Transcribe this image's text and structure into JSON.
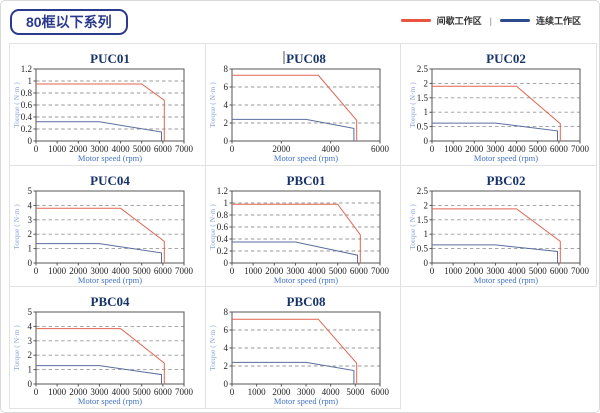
{
  "header": {
    "title": "80框以下系列"
  },
  "legend": {
    "separator": "|",
    "items": [
      {
        "label": "间歇工作区",
        "color": "#e8543d"
      },
      {
        "label": "连续工作区",
        "color": "#2e4a8f"
      }
    ]
  },
  "axis": {
    "xlabel": "Motor speed (rpm)",
    "ylabel": "Torque ( N·m )"
  },
  "colors": {
    "curve_red": "#e06552",
    "curve_blue": "#5a6d9e",
    "grid": "#999999",
    "frame": "#555555",
    "title": "#17336b",
    "tick": "#222222",
    "xlabel_text": "#4472c4",
    "ylabel_text": "#8ca6d9"
  },
  "chart_data": [
    {
      "type": "line",
      "title": "PUC01",
      "caret": false,
      "x": {
        "max": 7000,
        "step": 1000
      },
      "y": {
        "max": 1.2,
        "labels": [
          "0",
          "0.2",
          "0.4",
          "0.6",
          "0.8",
          "1",
          "1.2"
        ]
      },
      "series": [
        {
          "name": "间歇工作区",
          "color": "red",
          "points": [
            [
              0,
              0.95
            ],
            [
              5000,
              0.95
            ],
            [
              6000,
              0.68
            ],
            [
              6000,
              0
            ]
          ]
        },
        {
          "name": "连续工作区",
          "color": "blue",
          "points": [
            [
              0,
              0.32
            ],
            [
              3000,
              0.32
            ],
            [
              6000,
              0.15
            ],
            [
              6000,
              0
            ]
          ]
        }
      ]
    },
    {
      "type": "line",
      "title": "PUC08",
      "caret": true,
      "x": {
        "max": 6000,
        "step": 2000
      },
      "y": {
        "max": 8,
        "labels": [
          "0",
          "2",
          "4",
          "6",
          "8"
        ]
      },
      "series": [
        {
          "name": "间歇工作区",
          "color": "red",
          "points": [
            [
              0,
              7.3
            ],
            [
              3500,
              7.3
            ],
            [
              5000,
              2.3
            ],
            [
              5000,
              0
            ]
          ]
        },
        {
          "name": "连续工作区",
          "color": "blue",
          "points": [
            [
              0,
              2.4
            ],
            [
              3000,
              2.4
            ],
            [
              5000,
              1.4
            ],
            [
              5000,
              0
            ]
          ]
        }
      ]
    },
    {
      "type": "line",
      "title": "PUC02",
      "caret": false,
      "x": {
        "max": 7000,
        "step": 1000
      },
      "y": {
        "max": 2.5,
        "labels": [
          "0",
          "0.5",
          "1",
          "1.5",
          "2",
          "2.5"
        ]
      },
      "series": [
        {
          "name": "间歇工作区",
          "color": "red",
          "points": [
            [
              0,
              1.9
            ],
            [
              4000,
              1.9
            ],
            [
              6000,
              0.6
            ],
            [
              6000,
              0
            ]
          ]
        },
        {
          "name": "连续工作区",
          "color": "blue",
          "points": [
            [
              0,
              0.62
            ],
            [
              3000,
              0.62
            ],
            [
              6000,
              0.35
            ],
            [
              6000,
              0
            ]
          ]
        }
      ]
    },
    {
      "type": "line",
      "title": "PUC04",
      "caret": false,
      "x": {
        "max": 7000,
        "step": 1000
      },
      "y": {
        "max": 5,
        "labels": [
          "0",
          "1",
          "2",
          "3",
          "4",
          "5"
        ]
      },
      "series": [
        {
          "name": "间歇工作区",
          "color": "red",
          "points": [
            [
              0,
              3.8
            ],
            [
              4000,
              3.8
            ],
            [
              6000,
              1.5
            ],
            [
              6000,
              0
            ]
          ]
        },
        {
          "name": "连续工作区",
          "color": "blue",
          "points": [
            [
              0,
              1.35
            ],
            [
              3000,
              1.35
            ],
            [
              6000,
              0.7
            ],
            [
              6000,
              0
            ]
          ]
        }
      ]
    },
    {
      "type": "line",
      "title": "PBC01",
      "caret": false,
      "x": {
        "max": 7000,
        "step": 1000
      },
      "y": {
        "max": 1.2,
        "labels": [
          "0",
          "0.2",
          "0.4",
          "0.6",
          "0.8",
          "1",
          "1.2"
        ]
      },
      "series": [
        {
          "name": "间歇工作区",
          "color": "red",
          "points": [
            [
              0,
              0.98
            ],
            [
              5000,
              0.98
            ],
            [
              6000,
              0.47
            ],
            [
              6000,
              0
            ]
          ]
        },
        {
          "name": "连续工作区",
          "color": "blue",
          "points": [
            [
              0,
              0.35
            ],
            [
              3000,
              0.35
            ],
            [
              6000,
              0.13
            ],
            [
              6000,
              0
            ]
          ]
        }
      ]
    },
    {
      "type": "line",
      "title": "PBC02",
      "caret": false,
      "x": {
        "max": 7000,
        "step": 1000
      },
      "y": {
        "max": 2.5,
        "labels": [
          "0",
          "0.5",
          "1",
          "1.5",
          "2",
          "2.5"
        ]
      },
      "series": [
        {
          "name": "间歇工作区",
          "color": "red",
          "points": [
            [
              0,
              1.88
            ],
            [
              4000,
              1.88
            ],
            [
              6000,
              0.75
            ],
            [
              6000,
              0
            ]
          ]
        },
        {
          "name": "连续工作区",
          "color": "blue",
          "points": [
            [
              0,
              0.63
            ],
            [
              3000,
              0.63
            ],
            [
              6000,
              0.4
            ],
            [
              6000,
              0
            ]
          ]
        }
      ]
    },
    {
      "type": "line",
      "title": "PBC04",
      "caret": false,
      "x": {
        "max": 7000,
        "step": 1000
      },
      "y": {
        "max": 5,
        "labels": [
          "0",
          "1",
          "2",
          "3",
          "4",
          "5"
        ]
      },
      "series": [
        {
          "name": "间歇工作区",
          "color": "red",
          "points": [
            [
              0,
              3.85
            ],
            [
              4000,
              3.85
            ],
            [
              6000,
              1.45
            ],
            [
              6000,
              0
            ]
          ]
        },
        {
          "name": "连续工作区",
          "color": "blue",
          "points": [
            [
              0,
              1.28
            ],
            [
              3000,
              1.28
            ],
            [
              6000,
              0.65
            ],
            [
              6000,
              0
            ]
          ]
        }
      ]
    },
    {
      "type": "line",
      "title": "PBC08",
      "caret": false,
      "x": {
        "max": 6000,
        "step": 1000
      },
      "y": {
        "max": 8,
        "labels": [
          "0",
          "2",
          "4",
          "6",
          "8"
        ]
      },
      "series": [
        {
          "name": "间歇工作区",
          "color": "red",
          "points": [
            [
              0,
              7.2
            ],
            [
              3500,
              7.2
            ],
            [
              5000,
              2.3
            ],
            [
              5000,
              0
            ]
          ]
        },
        {
          "name": "连续工作区",
          "color": "blue",
          "points": [
            [
              0,
              2.4
            ],
            [
              3000,
              2.4
            ],
            [
              5000,
              1.5
            ],
            [
              5000,
              0
            ]
          ]
        }
      ]
    }
  ]
}
